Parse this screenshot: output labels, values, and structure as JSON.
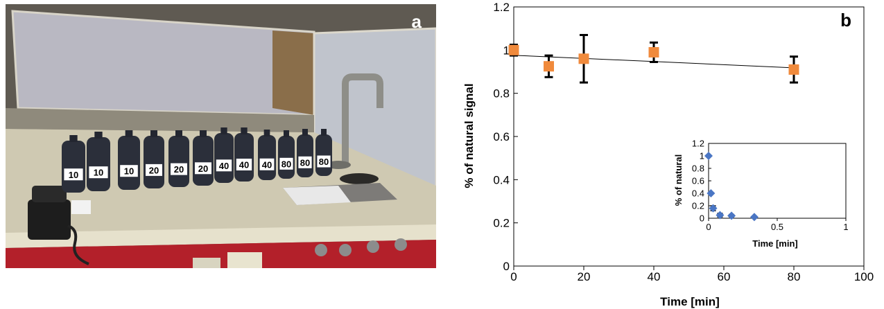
{
  "panel_a": {
    "label": "a",
    "bottle_labels": [
      "10",
      "10",
      "10",
      "20",
      "20",
      "20",
      "40",
      "40",
      "40",
      "80",
      "80",
      "80"
    ]
  },
  "panel_b": {
    "label": "b"
  },
  "chart_data": [
    {
      "type": "scatter",
      "title": "",
      "xlabel": "Time [min]",
      "ylabel": "% of natural signal",
      "xlim": [
        0,
        100
      ],
      "ylim": [
        0,
        1.2
      ],
      "x_ticks": [
        "0",
        "20",
        "40",
        "60",
        "80",
        "100"
      ],
      "y_ticks": [
        "0",
        "0.2",
        "0.4",
        "0.6",
        "0.8",
        "1",
        "1.2"
      ],
      "grid": false,
      "marker_color": "#f08a3c",
      "series": [
        {
          "marker": "square",
          "x": [
            0,
            10,
            20,
            40,
            80
          ],
          "y": [
            1.0,
            0.925,
            0.96,
            0.99,
            0.91
          ],
          "err": [
            0.025,
            0.05,
            0.11,
            0.045,
            0.06
          ]
        }
      ],
      "trendline": {
        "x": [
          0,
          80
        ],
        "y": [
          0.976,
          0.918
        ]
      }
    },
    {
      "type": "scatter",
      "title": "",
      "xlabel": "Time [min]",
      "ylabel": "% of natural",
      "xlim": [
        0,
        1
      ],
      "ylim": [
        0,
        1.2
      ],
      "x_ticks": [
        "0",
        "0.5",
        "1"
      ],
      "y_ticks": [
        "0",
        "0.2",
        "0.4",
        "0.6",
        "0.8",
        "1",
        "1.2"
      ],
      "grid": false,
      "marker_color": "#4a76c4",
      "series": [
        {
          "marker": "diamond",
          "x": [
            0,
            0.017,
            0.033,
            0.083,
            0.167,
            0.333
          ],
          "y": [
            1.0,
            0.4,
            0.16,
            0.05,
            0.04,
            0.02
          ],
          "err": [
            0,
            0,
            0.04,
            0.03,
            0.02,
            0.01
          ]
        }
      ]
    }
  ]
}
